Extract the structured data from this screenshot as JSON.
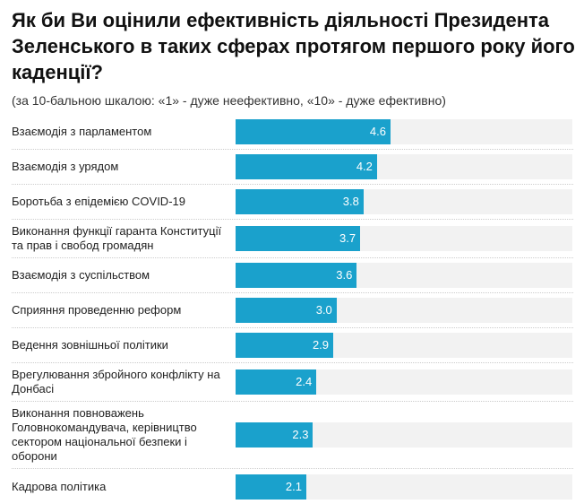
{
  "title": "Як би Ви оцінили ефективність діяльності Президента Зеленського в таких сферах протягом першого року його каденції?",
  "subtitle": "(за 10-бальною шкалою: «1» - дуже неефективно, «10» - дуже ефективно)",
  "chart_data": {
    "type": "bar",
    "orientation": "horizontal",
    "xlim": [
      0,
      10
    ],
    "bar_color": "#1aa1cc",
    "track_color": "#f2f2f2",
    "categories": [
      "Взаємодія з парламентом",
      "Взаємодія з урядом",
      "Боротьба з епідемією COVID-19",
      "Виконання функції гаранта Конституції та прав і свобод громадян",
      "Взаємодія з суспільством",
      "Сприяння проведенню реформ",
      "Ведення зовнішньої політики",
      "Врегулювання збройного конфлікту на Донбасі",
      "Виконання повноважень Головнокомандувача, керівництво сектором національної безпеки і оборони",
      "Кадрова політика"
    ],
    "values": [
      4.6,
      4.2,
      3.8,
      3.7,
      3.6,
      3.0,
      2.9,
      2.4,
      2.3,
      2.1
    ],
    "value_labels": [
      "4.6",
      "4.2",
      "3.8",
      "3.7",
      "3.6",
      "3.0",
      "2.9",
      "2.4",
      "2.3",
      "2.1"
    ]
  }
}
